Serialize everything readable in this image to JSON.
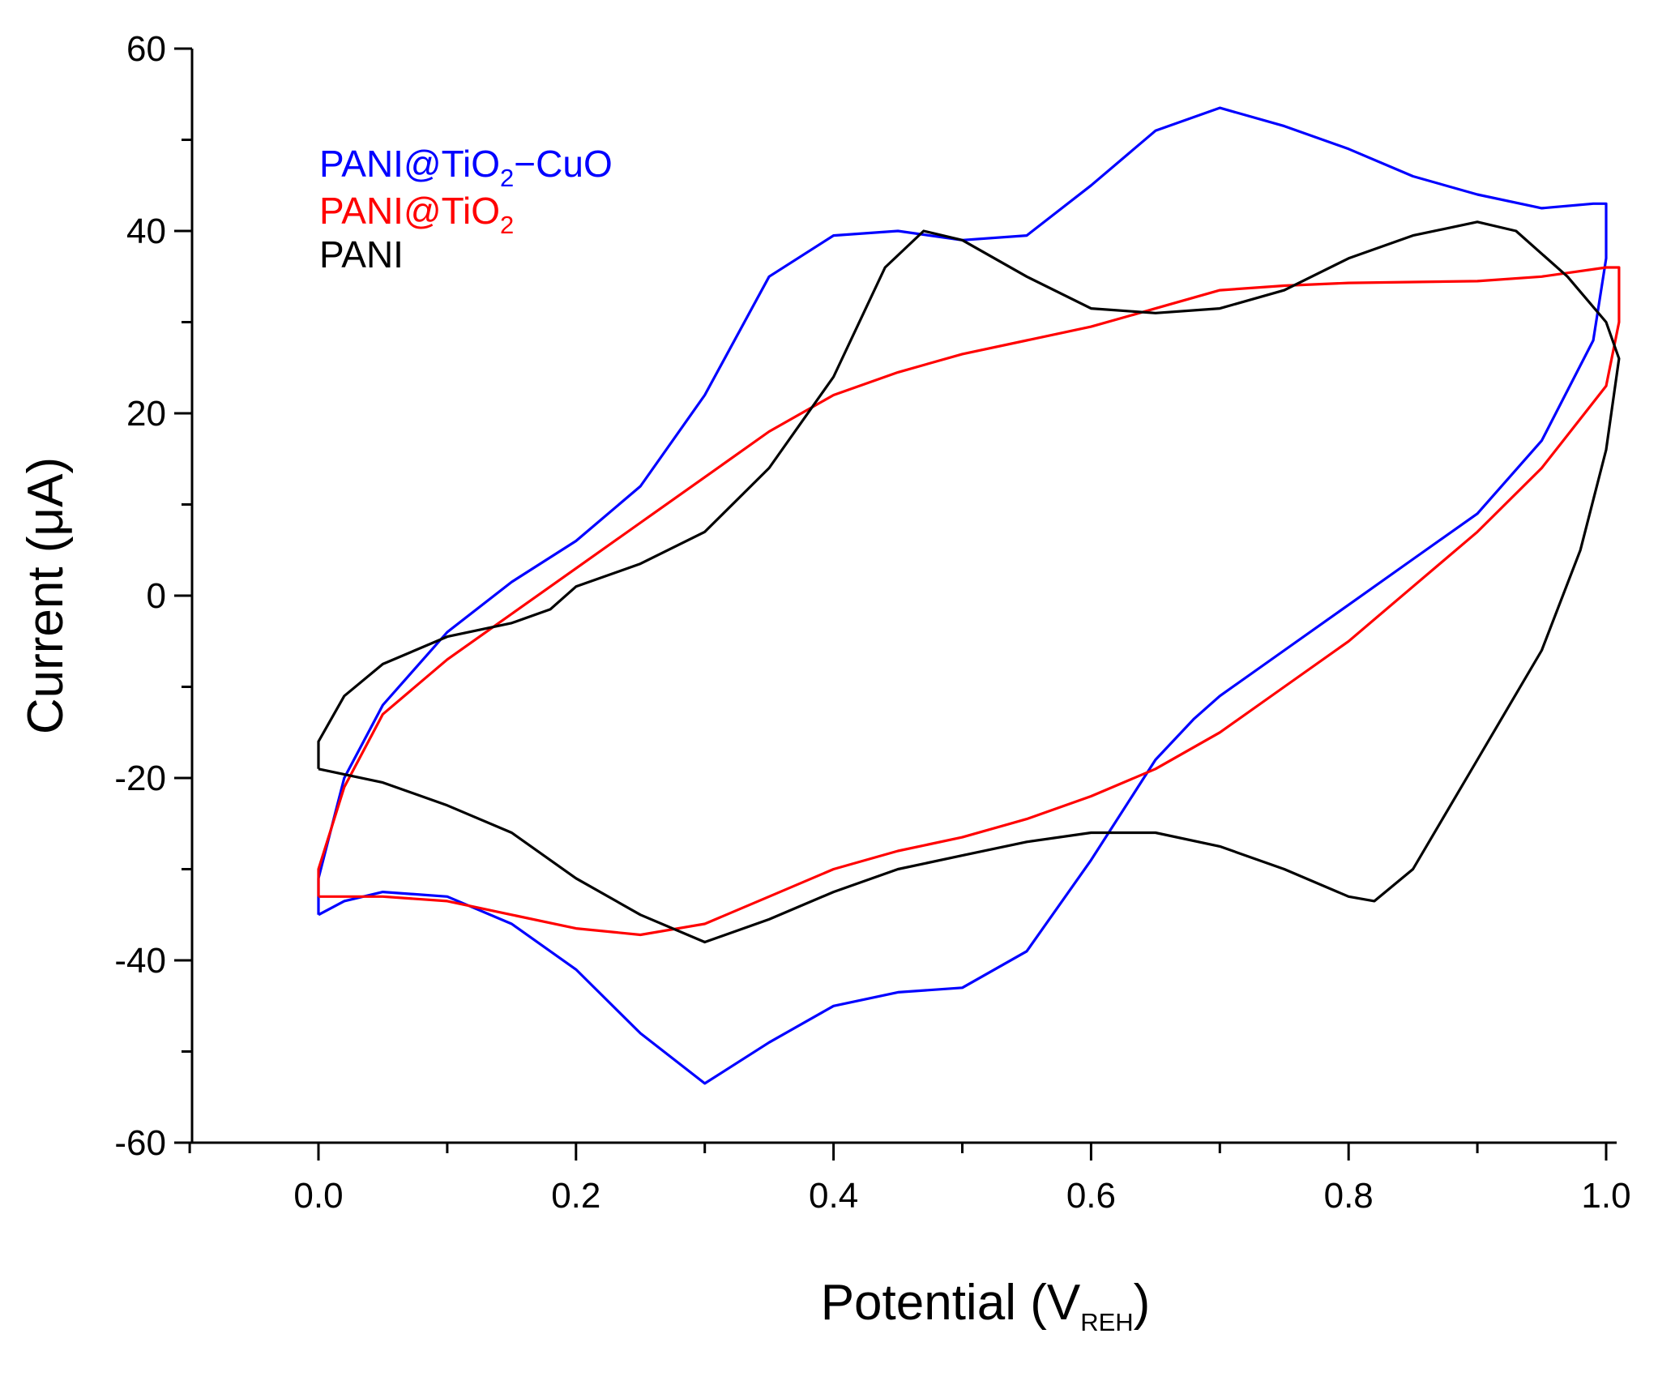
{
  "chart_data": {
    "type": "line",
    "title": "",
    "xlabel": {
      "main": "Potential (V",
      "sub": "REH",
      "close": ")"
    },
    "ylabel": {
      "main": "Current (",
      "mu": "μ",
      "unit": "A)"
    },
    "xlim": [
      -0.1,
      1.01
    ],
    "ylim": [
      -60,
      60
    ],
    "x_ticks": [
      0.0,
      0.2,
      0.4,
      0.6,
      0.8,
      1.0
    ],
    "x_tick_labels": [
      "0.0",
      "0.2",
      "0.4",
      "0.6",
      "0.8",
      "1.0"
    ],
    "x_minor_step": 0.1,
    "y_ticks": [
      -60,
      -40,
      -20,
      0,
      20,
      40,
      60
    ],
    "y_tick_labels": [
      "-60",
      "-40",
      "-20",
      "0",
      "20",
      "40",
      "60"
    ],
    "y_minor_step": 10,
    "grid": false,
    "legend_position": "top-left",
    "legend": [
      {
        "series": "PANI@TiO2-CuO",
        "main": "PANI@TiO",
        "sub": "2",
        "tail": "−CuO",
        "color": "#0000ff"
      },
      {
        "series": "PANI@TiO2",
        "main": "PANI@TiO",
        "sub": "2",
        "tail": "",
        "color": "#ff0000"
      },
      {
        "series": "PANI",
        "main": "PANI",
        "sub": "",
        "tail": "",
        "color": "#000000"
      }
    ],
    "series": [
      {
        "name": "PANI@TiO2-CuO",
        "color": "#0000ff",
        "points": [
          [
            0.0,
            -35
          ],
          [
            0.0,
            -31
          ],
          [
            0.02,
            -20
          ],
          [
            0.05,
            -12
          ],
          [
            0.1,
            -4
          ],
          [
            0.15,
            1.5
          ],
          [
            0.2,
            6
          ],
          [
            0.25,
            12
          ],
          [
            0.3,
            22
          ],
          [
            0.35,
            35
          ],
          [
            0.4,
            39.5
          ],
          [
            0.45,
            40
          ],
          [
            0.5,
            39
          ],
          [
            0.55,
            39.5
          ],
          [
            0.6,
            45
          ],
          [
            0.65,
            51
          ],
          [
            0.7,
            53.5
          ],
          [
            0.75,
            51.5
          ],
          [
            0.8,
            49
          ],
          [
            0.85,
            46
          ],
          [
            0.9,
            44
          ],
          [
            0.95,
            42.5
          ],
          [
            0.99,
            43
          ],
          [
            1.0,
            43
          ],
          [
            1.0,
            37
          ],
          [
            0.99,
            28
          ],
          [
            0.95,
            17
          ],
          [
            0.9,
            9
          ],
          [
            0.85,
            4
          ],
          [
            0.8,
            -1
          ],
          [
            0.75,
            -6
          ],
          [
            0.7,
            -11
          ],
          [
            0.68,
            -13.5
          ],
          [
            0.65,
            -18
          ],
          [
            0.6,
            -29
          ],
          [
            0.55,
            -39
          ],
          [
            0.5,
            -43
          ],
          [
            0.45,
            -43.5
          ],
          [
            0.4,
            -45
          ],
          [
            0.35,
            -49
          ],
          [
            0.3,
            -53.5
          ],
          [
            0.25,
            -48
          ],
          [
            0.2,
            -41
          ],
          [
            0.15,
            -36
          ],
          [
            0.1,
            -33
          ],
          [
            0.05,
            -32.5
          ],
          [
            0.02,
            -33.5
          ],
          [
            0.0,
            -35
          ]
        ]
      },
      {
        "name": "PANI@TiO2",
        "color": "#ff0000",
        "points": [
          [
            0.0,
            -33
          ],
          [
            0.0,
            -30
          ],
          [
            0.02,
            -21
          ],
          [
            0.05,
            -13
          ],
          [
            0.1,
            -7
          ],
          [
            0.15,
            -2
          ],
          [
            0.2,
            3
          ],
          [
            0.25,
            8
          ],
          [
            0.3,
            13
          ],
          [
            0.35,
            18
          ],
          [
            0.4,
            22
          ],
          [
            0.45,
            24.5
          ],
          [
            0.5,
            26.5
          ],
          [
            0.55,
            28
          ],
          [
            0.6,
            29.5
          ],
          [
            0.65,
            31.5
          ],
          [
            0.7,
            33.5
          ],
          [
            0.75,
            34
          ],
          [
            0.8,
            34.3
          ],
          [
            0.9,
            34.5
          ],
          [
            0.95,
            35
          ],
          [
            1.0,
            36
          ],
          [
            1.01,
            36
          ],
          [
            1.01,
            30
          ],
          [
            1.0,
            23
          ],
          [
            0.95,
            14
          ],
          [
            0.9,
            7
          ],
          [
            0.85,
            1
          ],
          [
            0.8,
            -5
          ],
          [
            0.75,
            -10
          ],
          [
            0.7,
            -15
          ],
          [
            0.65,
            -19
          ],
          [
            0.6,
            -22
          ],
          [
            0.55,
            -24.5
          ],
          [
            0.5,
            -26.5
          ],
          [
            0.45,
            -28
          ],
          [
            0.4,
            -30
          ],
          [
            0.35,
            -33
          ],
          [
            0.3,
            -36
          ],
          [
            0.25,
            -37.2
          ],
          [
            0.2,
            -36.5
          ],
          [
            0.15,
            -35
          ],
          [
            0.1,
            -33.5
          ],
          [
            0.05,
            -33
          ],
          [
            0.0,
            -33
          ]
        ]
      },
      {
        "name": "PANI",
        "color": "#000000",
        "points": [
          [
            0.0,
            -19
          ],
          [
            0.0,
            -16
          ],
          [
            0.02,
            -11
          ],
          [
            0.05,
            -7.5
          ],
          [
            0.1,
            -4.5
          ],
          [
            0.15,
            -3
          ],
          [
            0.18,
            -1.5
          ],
          [
            0.2,
            1
          ],
          [
            0.25,
            3.5
          ],
          [
            0.3,
            7
          ],
          [
            0.35,
            14
          ],
          [
            0.4,
            24
          ],
          [
            0.44,
            36
          ],
          [
            0.47,
            40
          ],
          [
            0.5,
            39
          ],
          [
            0.55,
            35
          ],
          [
            0.6,
            31.5
          ],
          [
            0.65,
            31
          ],
          [
            0.7,
            31.5
          ],
          [
            0.75,
            33.5
          ],
          [
            0.8,
            37
          ],
          [
            0.85,
            39.5
          ],
          [
            0.9,
            41
          ],
          [
            0.93,
            40
          ],
          [
            0.97,
            35
          ],
          [
            1.0,
            30
          ],
          [
            1.01,
            26
          ],
          [
            1.0,
            16
          ],
          [
            0.98,
            5
          ],
          [
            0.95,
            -6
          ],
          [
            0.9,
            -18
          ],
          [
            0.85,
            -30
          ],
          [
            0.82,
            -33.5
          ],
          [
            0.8,
            -33
          ],
          [
            0.75,
            -30
          ],
          [
            0.7,
            -27.5
          ],
          [
            0.65,
            -26
          ],
          [
            0.6,
            -26
          ],
          [
            0.55,
            -27
          ],
          [
            0.5,
            -28.5
          ],
          [
            0.45,
            -30
          ],
          [
            0.4,
            -32.5
          ],
          [
            0.35,
            -35.5
          ],
          [
            0.3,
            -38
          ],
          [
            0.25,
            -35
          ],
          [
            0.2,
            -31
          ],
          [
            0.15,
            -26
          ],
          [
            0.1,
            -23
          ],
          [
            0.05,
            -20.5
          ],
          [
            0.0,
            -19
          ]
        ]
      }
    ]
  }
}
